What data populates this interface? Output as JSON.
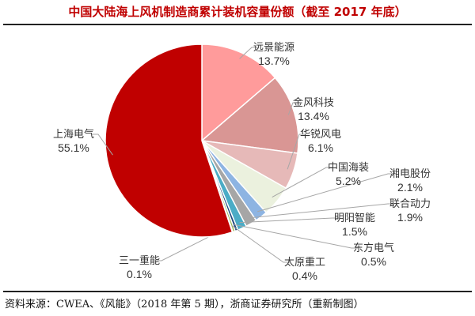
{
  "chart_data": {
    "type": "pie",
    "title": "中国大陆海上风机制造商累计装机容量份额（截至 2017 年底）",
    "slices": [
      {
        "name": "远景能源",
        "value": 13.7,
        "label": "13.7%",
        "color": "#ff9b9b"
      },
      {
        "name": "金风科技",
        "value": 13.4,
        "label": "13.4%",
        "color": "#d99694"
      },
      {
        "name": "华锐风电",
        "value": 6.1,
        "label": "6.1%",
        "color": "#e6b9b8"
      },
      {
        "name": "中国海装",
        "value": 5.2,
        "label": "5.2%",
        "color": "#ebf1de"
      },
      {
        "name": "湘电股份",
        "value": 2.1,
        "label": "2.1%",
        "color": "#8db4e2"
      },
      {
        "name": "联合动力",
        "value": 1.9,
        "label": "1.9%",
        "color": "#a6a6a6"
      },
      {
        "name": "明阳智能",
        "value": 1.5,
        "label": "1.5%",
        "color": "#4bacc6"
      },
      {
        "name": "东方电气",
        "value": 0.5,
        "label": "0.5%",
        "color": "#1f497d"
      },
      {
        "name": "太原重工",
        "value": 0.4,
        "label": "0.4%",
        "color": "#9bbb59"
      },
      {
        "name": "三一重能",
        "value": 0.1,
        "label": "0.1%",
        "color": "#f79646"
      },
      {
        "name": "上海电气",
        "value": 55.1,
        "label": "55.1%",
        "color": "#c00000"
      }
    ]
  },
  "source": "资料来源：CWEA、《风能》（2018 年第 5 期），浙商证券研究所（重新制图）"
}
